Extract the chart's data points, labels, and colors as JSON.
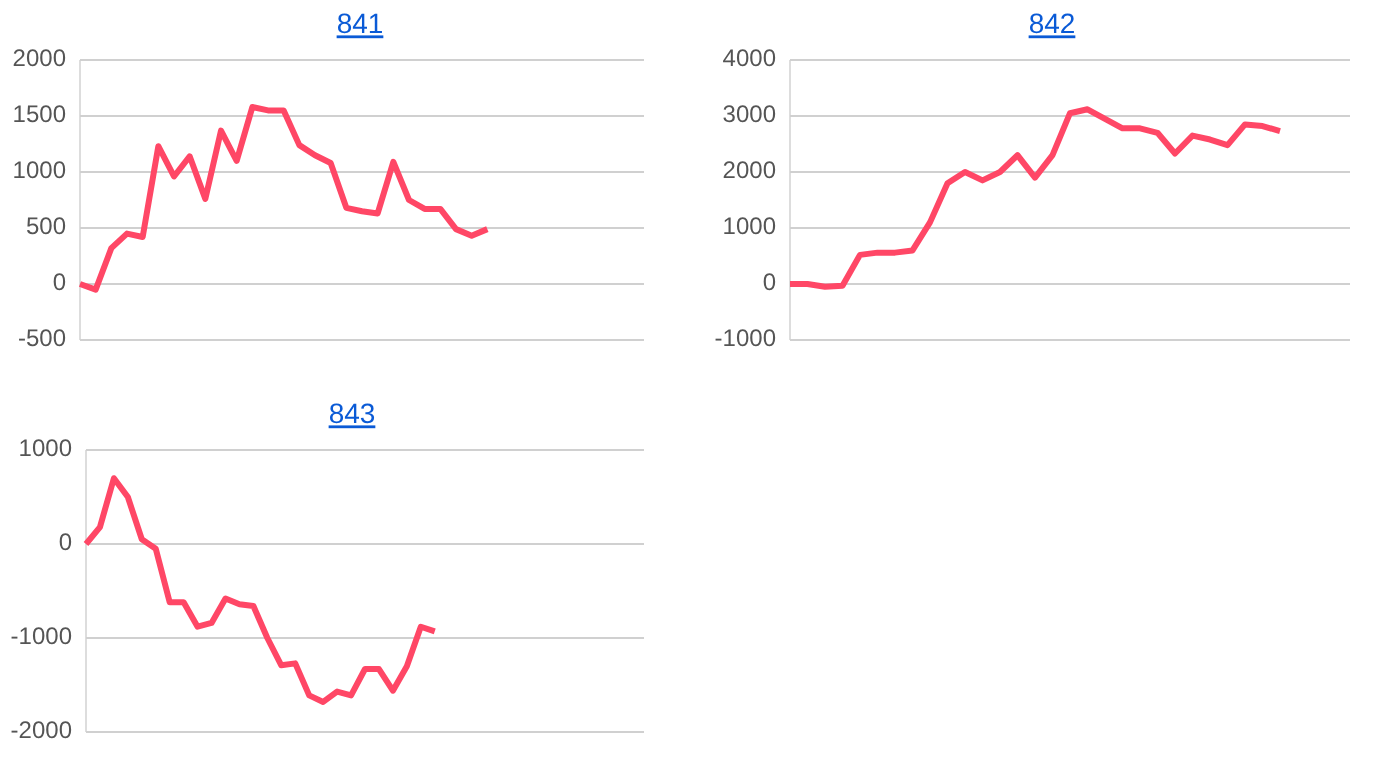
{
  "chart_data": [
    {
      "type": "line",
      "title": "841",
      "categories": [
        null,
        null,
        null,
        null,
        null,
        null,
        null,
        null,
        null,
        null,
        null,
        null,
        null,
        null,
        null,
        null,
        null,
        null,
        null,
        null,
        null,
        null,
        null,
        null,
        null,
        null,
        null,
        null,
        null,
        null,
        null,
        null,
        null,
        null,
        null,
        null,
        null
      ],
      "series": [
        {
          "color": "#ff4766",
          "values": [
            0,
            -50,
            320,
            450,
            420,
            1230,
            960,
            1140,
            760,
            1370,
            1100,
            1580,
            1550,
            1550,
            1240,
            1150,
            1080,
            680,
            650,
            630,
            1090,
            750,
            670,
            670,
            490,
            430,
            490,
            null,
            null,
            null,
            null,
            null,
            null,
            null,
            null,
            null,
            null
          ]
        }
      ],
      "ylim": [
        -500,
        2000
      ],
      "yticks": [
        -500,
        0,
        500,
        1000,
        1500,
        2000
      ],
      "grid": "y",
      "marker": "none",
      "line_style": "solid"
    },
    {
      "type": "line",
      "title": "842",
      "categories": [
        null,
        null,
        null,
        null,
        null,
        null,
        null,
        null,
        null,
        null,
        null,
        null,
        null,
        null,
        null,
        null,
        null,
        null,
        null,
        null,
        null,
        null,
        null,
        null,
        null,
        null,
        null,
        null,
        null,
        null,
        null,
        null,
        null
      ],
      "series": [
        {
          "color": "#ff4766",
          "values": [
            0,
            0,
            -50,
            -30,
            520,
            560,
            560,
            600,
            1100,
            1800,
            2000,
            1850,
            2000,
            2300,
            1900,
            2300,
            3050,
            3120,
            2950,
            2780,
            2780,
            2700,
            2330,
            2650,
            2580,
            2480,
            2850,
            2820,
            2730,
            null,
            null,
            null,
            null
          ]
        }
      ],
      "ylim": [
        -1000,
        4000
      ],
      "yticks": [
        -1000,
        0,
        1000,
        2000,
        3000,
        4000
      ],
      "grid": "y",
      "marker": "none",
      "line_style": "solid"
    },
    {
      "type": "line",
      "title": "843",
      "categories": [
        null,
        null,
        null,
        null,
        null,
        null,
        null,
        null,
        null,
        null,
        null,
        null,
        null,
        null,
        null,
        null,
        null,
        null,
        null,
        null,
        null,
        null,
        null,
        null,
        null,
        null,
        null,
        null,
        null,
        null,
        null,
        null,
        null,
        null,
        null,
        null,
        null,
        null,
        null,
        null,
        null
      ],
      "series": [
        {
          "color": "#ff4766",
          "values": [
            0,
            180,
            700,
            500,
            50,
            -50,
            -620,
            -620,
            -880,
            -840,
            -580,
            -640,
            -660,
            -1000,
            -1290,
            -1270,
            -1610,
            -1680,
            -1570,
            -1610,
            -1330,
            -1330,
            -1560,
            -1300,
            -880,
            -930,
            null,
            null,
            null,
            null,
            null,
            null,
            null,
            null,
            null,
            null,
            null,
            null,
            null,
            null,
            null
          ]
        }
      ],
      "ylim": [
        -2000,
        1000
      ],
      "yticks": [
        -2000,
        -1000,
        0,
        1000
      ],
      "grid": "y",
      "marker": "none",
      "line_style": "solid"
    }
  ]
}
